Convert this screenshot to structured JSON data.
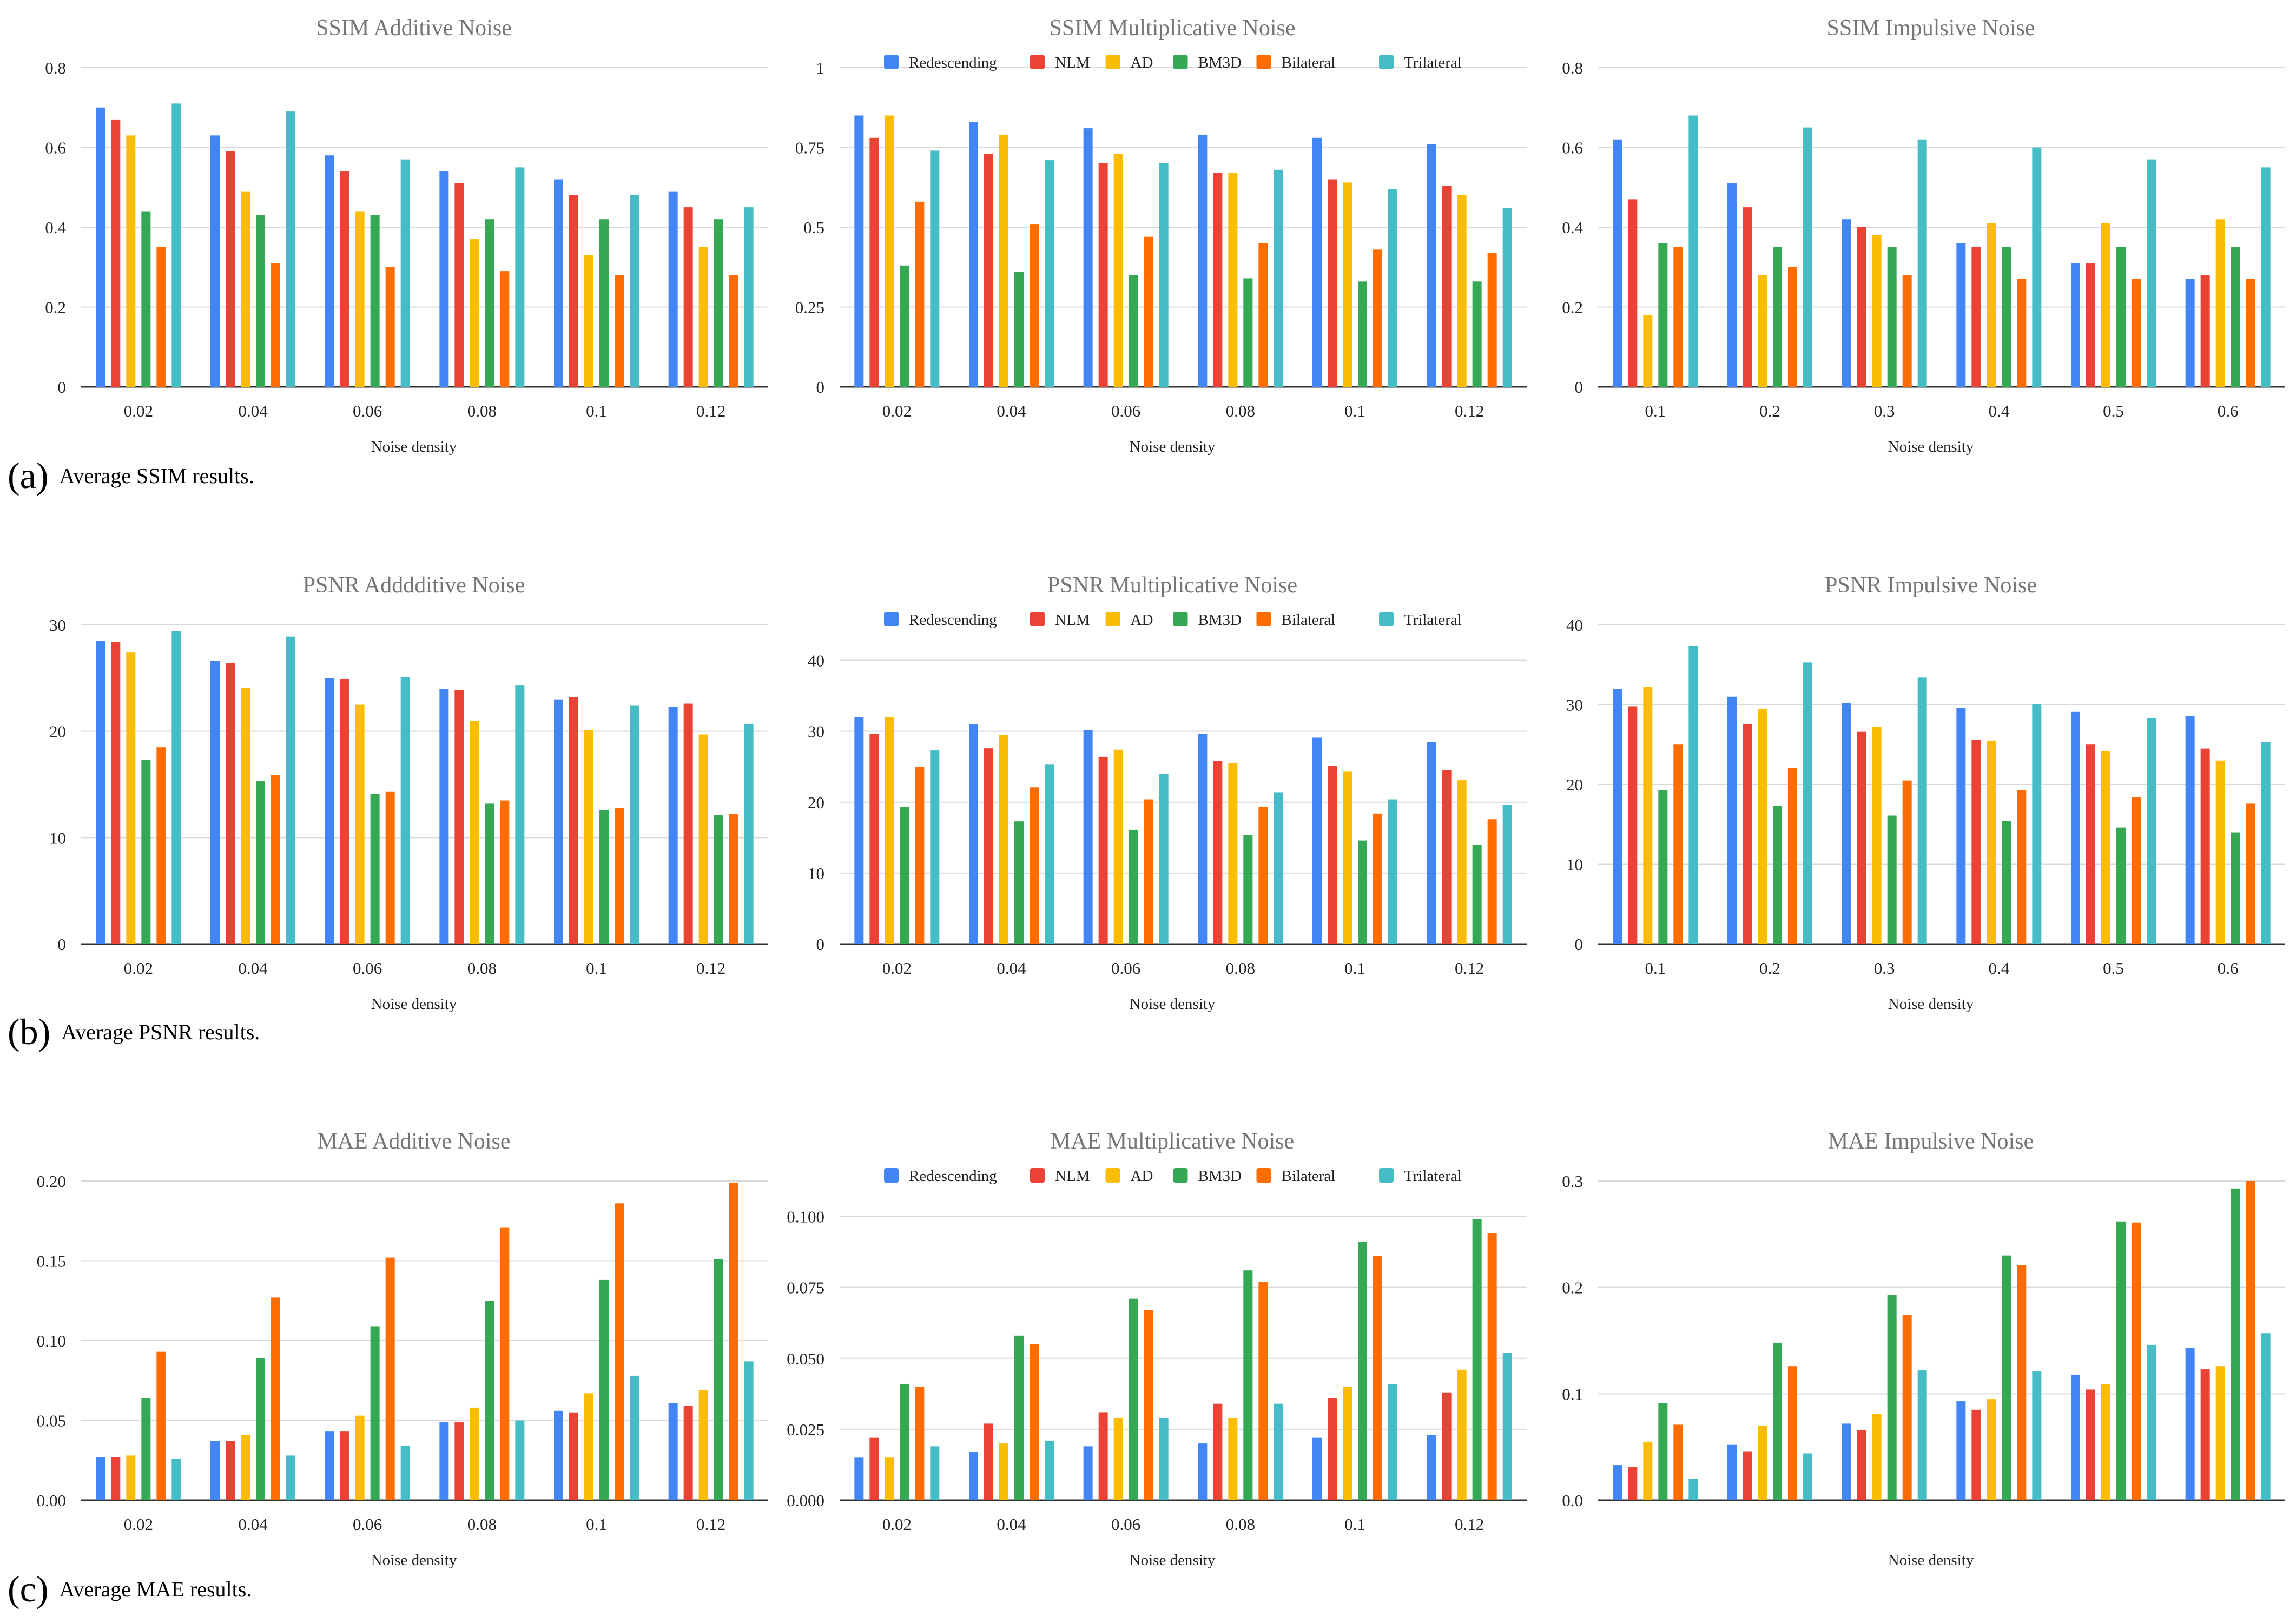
{
  "colors": {
    "Redescending": "#4285f4",
    "NLM": "#ea4335",
    "AD": "#fbbc04",
    "BM3D": "#34a853",
    "Bilateral": "#ff6d01",
    "Trilateral": "#46bdc6",
    "grid": "#d9d9d9",
    "axis": "#333333",
    "title": "#757575"
  },
  "captions": [
    {
      "tag": "(a)",
      "text": "Average SSIM results."
    },
    {
      "tag": "(b)",
      "text": "Average PSNR results."
    },
    {
      "tag": "(c)",
      "text": "Average MAE results."
    }
  ],
  "chart_data": [
    {
      "type": "bar",
      "title": "SSIM Additive Noise",
      "xlabel": "Noise density",
      "ylabel": "",
      "categories": [
        "0.02",
        "0.04",
        "0.06",
        "0.08",
        "0.1",
        "0.12"
      ],
      "ylim": [
        0,
        0.8
      ],
      "yticks": [
        "0",
        "0.2",
        "0.4",
        "0.6",
        "0.8"
      ],
      "legend": false,
      "series": [
        {
          "name": "Redescending",
          "values": [
            0.7,
            0.63,
            0.58,
            0.54,
            0.52,
            0.49
          ]
        },
        {
          "name": "NLM",
          "values": [
            0.67,
            0.59,
            0.54,
            0.51,
            0.48,
            0.45
          ]
        },
        {
          "name": "AD",
          "values": [
            0.63,
            0.49,
            0.44,
            0.37,
            0.33,
            0.35
          ]
        },
        {
          "name": "BM3D",
          "values": [
            0.44,
            0.43,
            0.43,
            0.42,
            0.42,
            0.42
          ]
        },
        {
          "name": "Bilateral",
          "values": [
            0.35,
            0.31,
            0.3,
            0.29,
            0.28,
            0.28
          ]
        },
        {
          "name": "Trilateral",
          "values": [
            0.71,
            0.69,
            0.57,
            0.55,
            0.48,
            0.45
          ]
        }
      ]
    },
    {
      "type": "bar",
      "title": "SSIM Multiplicative Noise",
      "xlabel": "Noise density",
      "ylabel": "",
      "categories": [
        "0.02",
        "0.04",
        "0.06",
        "0.08",
        "0.1",
        "0.12"
      ],
      "ylim": [
        0,
        1
      ],
      "yticks": [
        "0",
        "0.25",
        "0.5",
        "0.75",
        "1"
      ],
      "legend": true,
      "series": [
        {
          "name": "Redescending",
          "values": [
            0.85,
            0.83,
            0.81,
            0.79,
            0.78,
            0.76
          ]
        },
        {
          "name": "NLM",
          "values": [
            0.78,
            0.73,
            0.7,
            0.67,
            0.65,
            0.63
          ]
        },
        {
          "name": "AD",
          "values": [
            0.85,
            0.79,
            0.73,
            0.67,
            0.64,
            0.6
          ]
        },
        {
          "name": "BM3D",
          "values": [
            0.38,
            0.36,
            0.35,
            0.34,
            0.33,
            0.33
          ]
        },
        {
          "name": "Bilateral",
          "values": [
            0.58,
            0.51,
            0.47,
            0.45,
            0.43,
            0.42
          ]
        },
        {
          "name": "Trilateral",
          "values": [
            0.74,
            0.71,
            0.7,
            0.68,
            0.62,
            0.56
          ]
        }
      ]
    },
    {
      "type": "bar",
      "title": "SSIM Impulsive Noise",
      "xlabel": "Noise density",
      "ylabel": "",
      "categories": [
        "0.1",
        "0.2",
        "0.3",
        "0.4",
        "0.5",
        "0.6"
      ],
      "ylim": [
        0,
        0.8
      ],
      "yticks": [
        "0",
        "0.2",
        "0.4",
        "0.6",
        "0.8"
      ],
      "legend": false,
      "series": [
        {
          "name": "Redescending",
          "values": [
            0.62,
            0.51,
            0.42,
            0.36,
            0.31,
            0.27
          ]
        },
        {
          "name": "NLM",
          "values": [
            0.47,
            0.45,
            0.4,
            0.35,
            0.31,
            0.28
          ]
        },
        {
          "name": "AD",
          "values": [
            0.18,
            0.28,
            0.38,
            0.41,
            0.41,
            0.42
          ]
        },
        {
          "name": "BM3D",
          "values": [
            0.36,
            0.35,
            0.35,
            0.35,
            0.35,
            0.35
          ]
        },
        {
          "name": "Bilateral",
          "values": [
            0.35,
            0.3,
            0.28,
            0.27,
            0.27,
            0.27
          ]
        },
        {
          "name": "Trilateral",
          "values": [
            0.68,
            0.65,
            0.62,
            0.6,
            0.57,
            0.55
          ]
        }
      ]
    },
    {
      "type": "bar",
      "title": "PSNR Adddditive Noise",
      "xlabel": "Noise density",
      "ylabel": "",
      "categories": [
        "0.02",
        "0.04",
        "0.06",
        "0.08",
        "0.1",
        "0.12"
      ],
      "ylim": [
        0,
        30
      ],
      "yticks": [
        "0",
        "10",
        "20",
        "30"
      ],
      "legend": false,
      "series": [
        {
          "name": "Redescending",
          "values": [
            28.5,
            26.6,
            25.0,
            24.0,
            23.0,
            22.3
          ]
        },
        {
          "name": "NLM",
          "values": [
            28.4,
            26.4,
            24.9,
            23.9,
            23.2,
            22.6
          ]
        },
        {
          "name": "AD",
          "values": [
            27.4,
            24.1,
            22.5,
            21.0,
            20.1,
            19.7
          ]
        },
        {
          "name": "BM3D",
          "values": [
            17.3,
            15.3,
            14.1,
            13.2,
            12.6,
            12.1
          ]
        },
        {
          "name": "Bilateral",
          "values": [
            18.5,
            15.9,
            14.3,
            13.5,
            12.8,
            12.2
          ]
        },
        {
          "name": "Trilateral",
          "values": [
            29.4,
            28.9,
            25.1,
            24.3,
            22.4,
            20.7
          ]
        }
      ]
    },
    {
      "type": "bar",
      "title": "PSNR Multiplicative Noise",
      "xlabel": "Noise density",
      "ylabel": "",
      "categories": [
        "0.02",
        "0.04",
        "0.06",
        "0.08",
        "0.1",
        "0.12"
      ],
      "ylim": [
        0,
        45
      ],
      "yticks": [
        "0",
        "10",
        "20",
        "30",
        "40"
      ],
      "legend": true,
      "series": [
        {
          "name": "Redescending",
          "values": [
            32.0,
            31.0,
            30.2,
            29.6,
            29.1,
            28.5
          ]
        },
        {
          "name": "NLM",
          "values": [
            29.6,
            27.6,
            26.4,
            25.8,
            25.1,
            24.5
          ]
        },
        {
          "name": "AD",
          "values": [
            32.0,
            29.5,
            27.4,
            25.5,
            24.3,
            23.1
          ]
        },
        {
          "name": "BM3D",
          "values": [
            19.3,
            17.3,
            16.1,
            15.4,
            14.6,
            14.0
          ]
        },
        {
          "name": "Bilateral",
          "values": [
            25.0,
            22.1,
            20.4,
            19.3,
            18.4,
            17.6
          ]
        },
        {
          "name": "Trilateral",
          "values": [
            27.3,
            25.3,
            24.0,
            21.4,
            20.4,
            19.6
          ]
        }
      ]
    },
    {
      "type": "bar",
      "title": "PSNR Impulsive Noise",
      "xlabel": "Noise density",
      "ylabel": "",
      "categories": [
        "0.1",
        "0.2",
        "0.3",
        "0.4",
        "0.5",
        "0.6"
      ],
      "ylim": [
        0,
        40
      ],
      "yticks": [
        "0",
        "10",
        "20",
        "30",
        "40"
      ],
      "legend": false,
      "series": [
        {
          "name": "Redescending",
          "values": [
            32.0,
            31.0,
            30.2,
            29.6,
            29.1,
            28.6
          ]
        },
        {
          "name": "NLM",
          "values": [
            29.8,
            27.6,
            26.6,
            25.6,
            25.0,
            24.5
          ]
        },
        {
          "name": "AD",
          "values": [
            32.2,
            29.5,
            27.2,
            25.5,
            24.2,
            23.0
          ]
        },
        {
          "name": "BM3D",
          "values": [
            19.3,
            17.3,
            16.1,
            15.4,
            14.6,
            14.0
          ]
        },
        {
          "name": "Bilateral",
          "values": [
            25.0,
            22.1,
            20.5,
            19.3,
            18.4,
            17.6
          ]
        },
        {
          "name": "Trilateral",
          "values": [
            37.3,
            35.3,
            33.4,
            30.1,
            28.3,
            25.3
          ]
        }
      ]
    },
    {
      "type": "bar",
      "title": "MAE Additive Noise",
      "xlabel": "Noise density",
      "ylabel": "",
      "categories": [
        "0.02",
        "0.04",
        "0.06",
        "0.08",
        "0.1",
        "0.12"
      ],
      "ylim": [
        0,
        0.2
      ],
      "yticks": [
        "0.00",
        "0.05",
        "0.10",
        "0.15",
        "0.20"
      ],
      "legend": false,
      "series": [
        {
          "name": "Redescending",
          "values": [
            0.027,
            0.037,
            0.043,
            0.049,
            0.056,
            0.061
          ]
        },
        {
          "name": "NLM",
          "values": [
            0.027,
            0.037,
            0.043,
            0.049,
            0.055,
            0.059
          ]
        },
        {
          "name": "AD",
          "values": [
            0.028,
            0.041,
            0.053,
            0.058,
            0.067,
            0.069
          ]
        },
        {
          "name": "BM3D",
          "values": [
            0.064,
            0.089,
            0.109,
            0.125,
            0.138,
            0.151
          ]
        },
        {
          "name": "Bilateral",
          "values": [
            0.093,
            0.127,
            0.152,
            0.171,
            0.186,
            0.199
          ]
        },
        {
          "name": "Trilateral",
          "values": [
            0.026,
            0.028,
            0.034,
            0.05,
            0.078,
            0.087
          ]
        }
      ]
    },
    {
      "type": "bar",
      "title": "MAE Multiplicative Noise",
      "xlabel": "Noise density",
      "ylabel": "",
      "categories": [
        "0.02",
        "0.04",
        "0.06",
        "0.08",
        "0.1",
        "0.12"
      ],
      "ylim": [
        0,
        0.1125
      ],
      "yticks": [
        "0.000",
        "0.025",
        "0.050",
        "0.075",
        "0.100"
      ],
      "legend": true,
      "series": [
        {
          "name": "Redescending",
          "values": [
            0.015,
            0.017,
            0.019,
            0.02,
            0.022,
            0.023
          ]
        },
        {
          "name": "NLM",
          "values": [
            0.022,
            0.027,
            0.031,
            0.034,
            0.036,
            0.038
          ]
        },
        {
          "name": "AD",
          "values": [
            0.015,
            0.02,
            0.029,
            0.029,
            0.04,
            0.046
          ]
        },
        {
          "name": "BM3D",
          "values": [
            0.041,
            0.058,
            0.071,
            0.081,
            0.091,
            0.099
          ]
        },
        {
          "name": "Bilateral",
          "values": [
            0.04,
            0.055,
            0.067,
            0.077,
            0.086,
            0.094
          ]
        },
        {
          "name": "Trilateral",
          "values": [
            0.019,
            0.021,
            0.029,
            0.034,
            0.041,
            0.052
          ]
        }
      ]
    },
    {
      "type": "bar",
      "title": "MAE Impulsive Noise",
      "xlabel": "Noise density",
      "ylabel": "",
      "categories": [
        "",
        "",
        "",
        "",
        "",
        ""
      ],
      "ylim": [
        0,
        0.3
      ],
      "yticks": [
        "0.0",
        "0.1",
        "0.2",
        "0.3"
      ],
      "legend": false,
      "series": [
        {
          "name": "Redescending",
          "values": [
            0.033,
            0.052,
            0.072,
            0.093,
            0.118,
            0.143
          ]
        },
        {
          "name": "NLM",
          "values": [
            0.031,
            0.046,
            0.066,
            0.085,
            0.104,
            0.123
          ]
        },
        {
          "name": "AD",
          "values": [
            0.055,
            0.07,
            0.081,
            0.095,
            0.109,
            0.126
          ]
        },
        {
          "name": "BM3D",
          "values": [
            0.091,
            0.148,
            0.193,
            0.23,
            0.262,
            0.293
          ]
        },
        {
          "name": "Bilateral",
          "values": [
            0.071,
            0.126,
            0.174,
            0.221,
            0.261,
            0.3
          ]
        },
        {
          "name": "Trilateral",
          "values": [
            0.02,
            0.044,
            0.122,
            0.121,
            0.146,
            0.157
          ]
        }
      ]
    }
  ]
}
